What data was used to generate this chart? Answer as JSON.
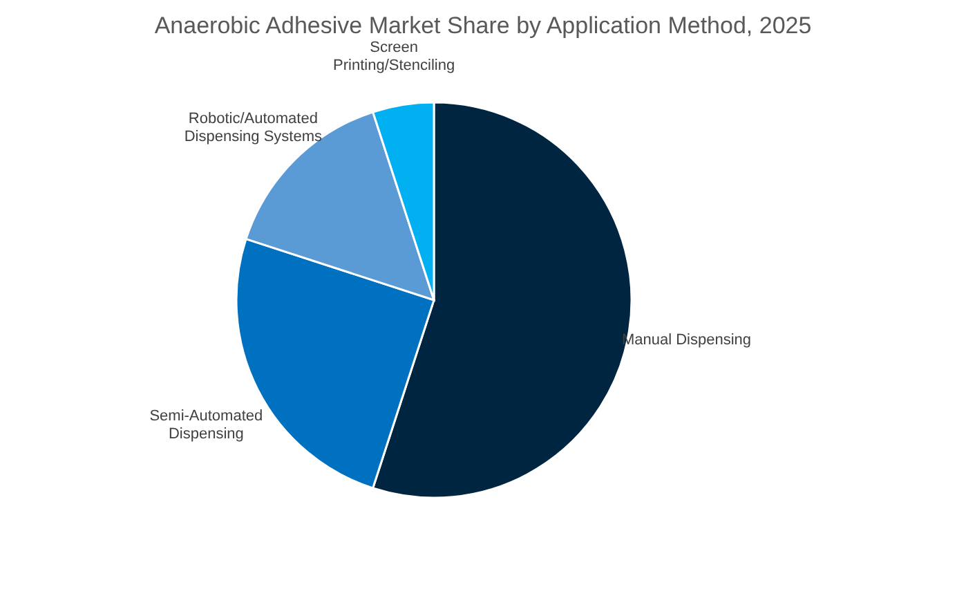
{
  "chart_data": {
    "type": "pie",
    "title": "Anaerobic Adhesive Market Share by Application Method, 2025",
    "categories": [
      "Manual Dispensing",
      "Semi-Automated Dispensing",
      "Robotic/Automated Dispensing Systems",
      "Screen Printing/Stenciling"
    ],
    "values": [
      55,
      25,
      15,
      5
    ],
    "colors": [
      "#002540",
      "#0070c0",
      "#5b9bd5",
      "#00b0f0"
    ],
    "legend": false
  }
}
